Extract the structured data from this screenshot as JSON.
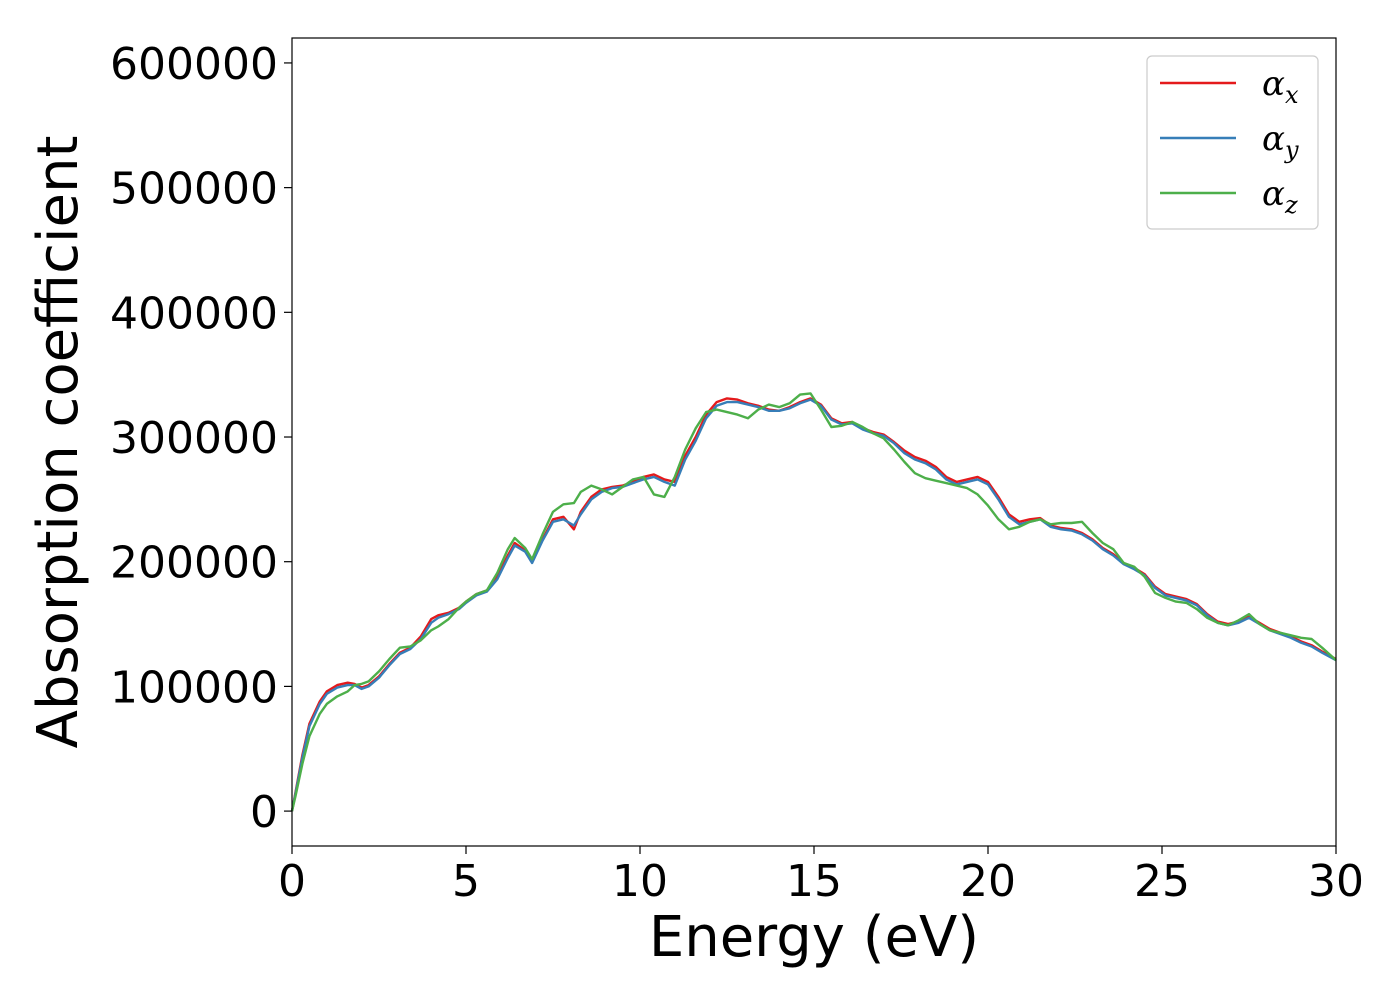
{
  "chart_data": {
    "type": "line",
    "title": "",
    "xlabel": "Energy (eV)",
    "ylabel": "Absorption coefficient",
    "xlim": [
      0,
      30
    ],
    "ylim": [
      -28000,
      620000
    ],
    "xticks": [
      0,
      5,
      10,
      15,
      20,
      25,
      30
    ],
    "yticks": [
      0,
      100000,
      200000,
      300000,
      400000,
      500000,
      600000
    ],
    "xtick_labels": [
      "0",
      "5",
      "10",
      "15",
      "20",
      "25",
      "30"
    ],
    "ytick_labels": [
      "0",
      "100000",
      "200000",
      "300000",
      "400000",
      "500000",
      "600000"
    ],
    "grid": false,
    "legend_position": "top-right",
    "series": [
      {
        "legend_symbol": "α",
        "legend_subscript": "x",
        "color": "#e41a1c",
        "x": [
          0,
          0.1,
          0.3,
          0.5,
          0.8,
          1.0,
          1.3,
          1.6,
          1.8,
          2.0,
          2.2,
          2.5,
          2.8,
          3.1,
          3.4,
          3.7,
          4.0,
          4.2,
          4.5,
          4.8,
          5.0,
          5.3,
          5.6,
          5.9,
          6.2,
          6.4,
          6.7,
          6.9,
          7.2,
          7.5,
          7.8,
          8.1,
          8.3,
          8.6,
          8.9,
          9.2,
          9.5,
          9.8,
          10.1,
          10.4,
          10.7,
          11.0,
          11.3,
          11.6,
          11.9,
          12.2,
          12.5,
          12.8,
          13.1,
          13.4,
          13.7,
          14.0,
          14.3,
          14.6,
          14.9,
          15.2,
          15.5,
          15.8,
          16.1,
          16.4,
          16.7,
          17.0,
          17.3,
          17.6,
          17.9,
          18.2,
          18.5,
          18.8,
          19.1,
          19.4,
          19.7,
          20.0,
          20.3,
          20.6,
          20.9,
          21.2,
          21.5,
          21.8,
          22.1,
          22.4,
          22.7,
          23.0,
          23.3,
          23.6,
          23.9,
          24.2,
          24.5,
          24.8,
          25.1,
          25.4,
          25.7,
          26.0,
          26.3,
          26.6,
          26.9,
          27.2,
          27.5,
          27.8,
          28.1,
          28.4,
          28.7,
          29.0,
          29.3,
          29.6,
          30.0
        ],
        "y": [
          0,
          15000,
          45000,
          70000,
          88000,
          96000,
          101000,
          103000,
          102000,
          99000,
          101000,
          108000,
          118000,
          127000,
          131000,
          140000,
          154000,
          157000,
          159000,
          163000,
          168000,
          174000,
          177000,
          188000,
          205000,
          215000,
          209000,
          200000,
          218000,
          234000,
          236000,
          226000,
          240000,
          252000,
          258000,
          260000,
          261000,
          264000,
          268000,
          270000,
          266000,
          264000,
          285000,
          300000,
          318000,
          328000,
          331000,
          330000,
          327000,
          325000,
          322000,
          321000,
          324000,
          328000,
          331000,
          326000,
          315000,
          311000,
          312000,
          307000,
          304000,
          302000,
          296000,
          289000,
          284000,
          281000,
          276000,
          268000,
          264000,
          266000,
          268000,
          264000,
          252000,
          238000,
          232000,
          234000,
          235000,
          229000,
          227000,
          226000,
          223000,
          218000,
          211000,
          206000,
          199000,
          195000,
          190000,
          180000,
          174000,
          172000,
          170000,
          166000,
          158000,
          152000,
          150000,
          152000,
          156000,
          151000,
          146000,
          143000,
          140000,
          136000,
          133000,
          128000,
          122000
        ]
      },
      {
        "legend_symbol": "α",
        "legend_subscript": "y",
        "color": "#377eb8",
        "x": [
          0,
          0.1,
          0.3,
          0.5,
          0.8,
          1.0,
          1.3,
          1.6,
          1.8,
          2.0,
          2.2,
          2.5,
          2.8,
          3.1,
          3.4,
          3.7,
          4.0,
          4.2,
          4.5,
          4.8,
          5.0,
          5.3,
          5.6,
          5.9,
          6.2,
          6.4,
          6.7,
          6.9,
          7.2,
          7.5,
          7.8,
          8.1,
          8.3,
          8.6,
          8.9,
          9.2,
          9.5,
          9.8,
          10.1,
          10.4,
          10.7,
          11.0,
          11.3,
          11.6,
          11.9,
          12.2,
          12.5,
          12.8,
          13.1,
          13.4,
          13.7,
          14.0,
          14.3,
          14.6,
          14.9,
          15.2,
          15.5,
          15.8,
          16.1,
          16.4,
          16.7,
          17.0,
          17.3,
          17.6,
          17.9,
          18.2,
          18.5,
          18.8,
          19.1,
          19.4,
          19.7,
          20.0,
          20.3,
          20.6,
          20.9,
          21.2,
          21.5,
          21.8,
          22.1,
          22.4,
          22.7,
          23.0,
          23.3,
          23.6,
          23.9,
          24.2,
          24.5,
          24.8,
          25.1,
          25.4,
          25.7,
          26.0,
          26.3,
          26.6,
          26.9,
          27.2,
          27.5,
          27.8,
          28.1,
          28.4,
          28.7,
          29.0,
          29.3,
          29.6,
          30.0
        ],
        "y": [
          0,
          14000,
          43000,
          68000,
          86000,
          94000,
          99000,
          101000,
          101000,
          98000,
          100000,
          107000,
          117000,
          126000,
          130000,
          138000,
          151000,
          155000,
          158000,
          162000,
          167000,
          173000,
          176000,
          186000,
          203000,
          213000,
          208000,
          199000,
          217000,
          232000,
          234000,
          229000,
          238000,
          250000,
          256000,
          259000,
          260000,
          263000,
          266000,
          268000,
          264000,
          261000,
          282000,
          297000,
          315000,
          325000,
          328000,
          328000,
          326000,
          324000,
          321000,
          321000,
          323000,
          327000,
          330000,
          325000,
          314000,
          310000,
          311000,
          306000,
          303000,
          301000,
          295000,
          287000,
          282000,
          279000,
          274000,
          266000,
          262000,
          264000,
          266000,
          262000,
          250000,
          236000,
          230000,
          232000,
          234000,
          228000,
          226000,
          225000,
          222000,
          217000,
          210000,
          205000,
          198000,
          194000,
          189000,
          179000,
          173000,
          171000,
          169000,
          165000,
          157000,
          151000,
          149000,
          151000,
          155000,
          150000,
          145000,
          142000,
          139000,
          135000,
          132000,
          127000,
          121000
        ]
      },
      {
        "legend_symbol": "α",
        "legend_subscript": "z",
        "color": "#4daf4a",
        "x": [
          0,
          0.1,
          0.3,
          0.5,
          0.8,
          1.0,
          1.3,
          1.6,
          1.8,
          2.0,
          2.2,
          2.5,
          2.8,
          3.1,
          3.4,
          3.7,
          4.0,
          4.2,
          4.5,
          4.8,
          5.0,
          5.3,
          5.6,
          5.9,
          6.2,
          6.4,
          6.7,
          6.9,
          7.2,
          7.5,
          7.8,
          8.1,
          8.3,
          8.6,
          8.9,
          9.2,
          9.5,
          9.8,
          10.1,
          10.4,
          10.7,
          11.0,
          11.3,
          11.6,
          11.9,
          12.2,
          12.5,
          12.8,
          13.1,
          13.4,
          13.7,
          14.0,
          14.3,
          14.6,
          14.9,
          15.2,
          15.5,
          15.8,
          16.1,
          16.4,
          16.7,
          17.0,
          17.3,
          17.6,
          17.9,
          18.2,
          18.5,
          18.8,
          19.1,
          19.4,
          19.7,
          20.0,
          20.3,
          20.6,
          20.9,
          21.2,
          21.5,
          21.8,
          22.1,
          22.4,
          22.7,
          23.0,
          23.3,
          23.6,
          23.9,
          24.2,
          24.5,
          24.8,
          25.1,
          25.4,
          25.7,
          26.0,
          26.3,
          26.6,
          26.9,
          27.2,
          27.5,
          27.8,
          28.1,
          28.4,
          28.7,
          29.0,
          29.3,
          29.6,
          30.0
        ],
        "y": [
          0,
          12000,
          38000,
          60000,
          78000,
          86000,
          92000,
          96000,
          101000,
          102000,
          104000,
          112000,
          122000,
          131000,
          132000,
          137000,
          145000,
          148000,
          154000,
          163000,
          168000,
          174000,
          177000,
          191000,
          210000,
          219000,
          211000,
          202000,
          222000,
          240000,
          246000,
          247000,
          256000,
          261000,
          258000,
          254000,
          260000,
          266000,
          268000,
          254000,
          252000,
          268000,
          290000,
          307000,
          320000,
          322000,
          320000,
          318000,
          315000,
          322000,
          326000,
          324000,
          327000,
          334000,
          335000,
          322000,
          308000,
          309000,
          312000,
          308000,
          303000,
          299000,
          290000,
          280000,
          271000,
          267000,
          265000,
          263000,
          261000,
          259000,
          254000,
          245000,
          234000,
          226000,
          228000,
          232000,
          234000,
          230000,
          231000,
          231000,
          232000,
          223000,
          215000,
          210000,
          199000,
          196000,
          188000,
          175000,
          171000,
          168000,
          167000,
          162000,
          155000,
          151000,
          149000,
          153000,
          158000,
          150000,
          145000,
          143000,
          141000,
          139000,
          138000,
          131000,
          121000
        ]
      }
    ]
  }
}
